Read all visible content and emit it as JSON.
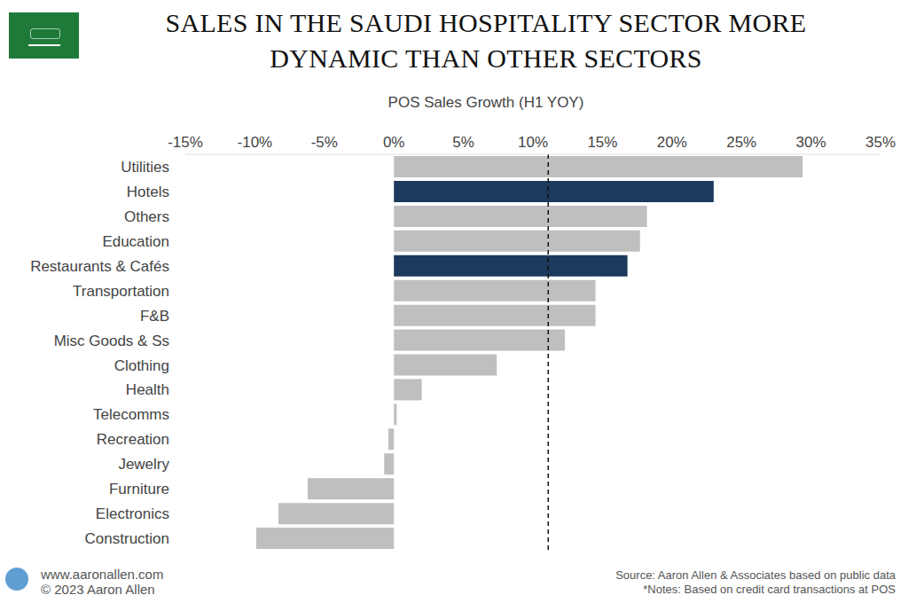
{
  "chart_data": {
    "type": "bar",
    "orientation": "horizontal",
    "title": "SALES IN THE SAUDI HOSPITALITY SECTOR MORE\nDYNAMIC THAN OTHER SECTORS",
    "x_label": "POS Sales Growth (H1 YOY)",
    "categories": [
      "Utilities",
      "Hotels",
      "Others",
      "Education",
      "Restaurants & Cafés",
      "Transportation",
      "F&B",
      "Misc Goods & Ss",
      "Clothing",
      "Health",
      "Telecomms",
      "Recreation",
      "Jewelry",
      "Furniture",
      "Electronics",
      "Construction"
    ],
    "values": [
      29.4,
      23.0,
      18.2,
      17.7,
      16.8,
      14.5,
      14.5,
      12.3,
      7.4,
      2.0,
      0.2,
      -0.4,
      -0.7,
      -6.2,
      -8.3,
      -9.9
    ],
    "colors": [
      "#bfbfbf",
      "#1b3a5c",
      "#bfbfbf",
      "#bfbfbf",
      "#1b3a5c",
      "#bfbfbf",
      "#bfbfbf",
      "#bfbfbf",
      "#bfbfbf",
      "#bfbfbf",
      "#bfbfbf",
      "#bfbfbf",
      "#bfbfbf",
      "#bfbfbf",
      "#bfbfbf",
      "#bfbfbf"
    ],
    "xlim": [
      -15,
      35
    ],
    "xticks": [
      {
        "value": -15,
        "label": "-15%"
      },
      {
        "value": -10,
        "label": "-10%"
      },
      {
        "value": -5,
        "label": "-5%"
      },
      {
        "value": 0,
        "label": "0%"
      },
      {
        "value": 5,
        "label": "5%"
      },
      {
        "value": 10,
        "label": "10%"
      },
      {
        "value": 15,
        "label": "15%"
      },
      {
        "value": 20,
        "label": "20%"
      },
      {
        "value": 25,
        "label": "25%"
      },
      {
        "value": 30,
        "label": "30%"
      },
      {
        "value": 35,
        "label": "35%"
      }
    ],
    "reference_line": 11.1,
    "grid": false,
    "website": "www.aaronallen.com",
    "copyright": "© 2023 Aaron Allen",
    "source": "Source: Aaron Allen & Associates based on public data",
    "notes": "*Notes: Based on credit card transactions at POS"
  }
}
